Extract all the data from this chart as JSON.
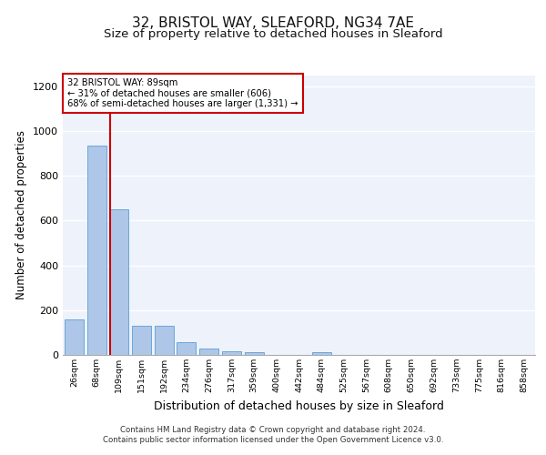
{
  "title_line1": "32, BRISTOL WAY, SLEAFORD, NG34 7AE",
  "title_line2": "Size of property relative to detached houses in Sleaford",
  "xlabel": "Distribution of detached houses by size in Sleaford",
  "ylabel": "Number of detached properties",
  "categories": [
    "26sqm",
    "68sqm",
    "109sqm",
    "151sqm",
    "192sqm",
    "234sqm",
    "276sqm",
    "317sqm",
    "359sqm",
    "400sqm",
    "442sqm",
    "484sqm",
    "525sqm",
    "567sqm",
    "608sqm",
    "650sqm",
    "692sqm",
    "733sqm",
    "775sqm",
    "816sqm",
    "858sqm"
  ],
  "values": [
    160,
    935,
    650,
    130,
    130,
    55,
    30,
    15,
    12,
    0,
    0,
    12,
    0,
    0,
    0,
    0,
    0,
    0,
    0,
    0,
    0
  ],
  "bar_color": "#aec6e8",
  "bar_edge_color": "#5a9fd4",
  "property_line_x": 1.62,
  "annotation_line1": "32 BRISTOL WAY: 89sqm",
  "annotation_line2": "← 31% of detached houses are smaller (606)",
  "annotation_line3": "68% of semi-detached houses are larger (1,331) →",
  "annotation_box_color": "#ffffff",
  "annotation_box_edge": "#cc0000",
  "red_line_color": "#cc0000",
  "ylim": [
    0,
    1250
  ],
  "yticks": [
    0,
    200,
    400,
    600,
    800,
    1000,
    1200
  ],
  "footer_line1": "Contains HM Land Registry data © Crown copyright and database right 2024.",
  "footer_line2": "Contains public sector information licensed under the Open Government Licence v3.0.",
  "background_color": "#eef2fb",
  "grid_color": "#ffffff",
  "title1_fontsize": 11,
  "title2_fontsize": 9.5,
  "xlabel_fontsize": 9,
  "ylabel_fontsize": 8.5
}
